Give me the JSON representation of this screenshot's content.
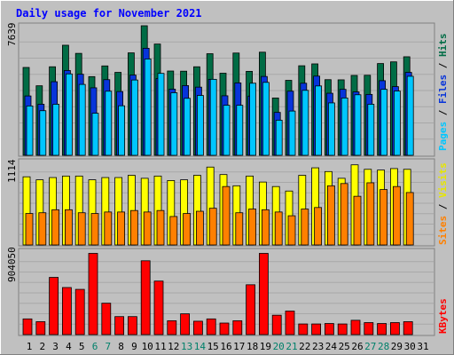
{
  "chart_data": {
    "type": "bar",
    "title": "Daily usage for November 2021",
    "categories": [
      "1",
      "2",
      "3",
      "4",
      "5",
      "6",
      "7",
      "8",
      "9",
      "10",
      "11",
      "12",
      "13",
      "14",
      "15",
      "16",
      "17",
      "18",
      "19",
      "20",
      "21",
      "22",
      "23",
      "24",
      "25",
      "26",
      "27",
      "28",
      "29",
      "30",
      "31"
    ],
    "weekend_days": [
      6,
      7,
      13,
      14,
      20,
      21,
      27,
      28
    ],
    "panels": [
      {
        "name": "top",
        "ymax_label": "7639",
        "ymax": 7639,
        "ylabel": [
          "Pages",
          "Files",
          "Hits"
        ],
        "series": [
          {
            "name": "Hits",
            "color": "#006c45",
            "values": [
              5180,
              4100,
              5220,
              6490,
              6010,
              4640,
              5270,
              4890,
              6040,
              7639,
              6560,
              4970,
              4960,
              5220,
              5990,
              4840,
              6030,
              4950,
              6080,
              3380,
              4420,
              5280,
              5390,
              4460,
              4450,
              4710,
              4720,
              5410,
              5510,
              5810,
              0
            ]
          },
          {
            "name": "Files",
            "color": "#0734da",
            "values": [
              3500,
              3010,
              4340,
              5000,
              4780,
              3980,
              4460,
              3760,
              4730,
              6310,
              4520,
              3900,
              4110,
              4020,
              4480,
              3510,
              4270,
              3490,
              4650,
              2530,
              3780,
              4250,
              4670,
              3660,
              3890,
              3740,
              3590,
              4400,
              4050,
              4890,
              0
            ]
          },
          {
            "name": "Pages",
            "color": "#00c6ff",
            "values": [
              2910,
              2630,
              3010,
              4800,
              4180,
              2480,
              3780,
              2920,
              4440,
              5680,
              4830,
              3690,
              3360,
              3530,
              4480,
              2950,
              2950,
              4250,
              4300,
              2070,
              2610,
              3830,
              4090,
              3090,
              3380,
              3570,
              3010,
              3890,
              3790,
              4660,
              0
            ]
          }
        ]
      },
      {
        "name": "middle",
        "ymax_label": "1114",
        "ymax": 1114,
        "ylabel": [
          "Sites",
          "Visits"
        ],
        "series": [
          {
            "name": "Visits",
            "color": "#ffff00",
            "values": [
              910,
              870,
              900,
              920,
              920,
              870,
              900,
              900,
              930,
              890,
              920,
              860,
              870,
              930,
              1040,
              940,
              790,
              920,
              840,
              780,
              720,
              930,
              1030,
              980,
              890,
              1070,
              1010,
              1000,
              1020,
              1010,
              0
            ]
          },
          {
            "name": "Sites",
            "color": "#ff8000",
            "values": [
              420,
              430,
              470,
              470,
              430,
              420,
              440,
              440,
              460,
              440,
              460,
              380,
              420,
              450,
              490,
              780,
              430,
              480,
              470,
              440,
              390,
              480,
              500,
              790,
              820,
              650,
              830,
              740,
              780,
              700,
              0
            ]
          }
        ]
      },
      {
        "name": "bottom",
        "ymax_label": "904050",
        "ymax": 904050,
        "ylabel": [
          "KBytes"
        ],
        "series": [
          {
            "name": "KBytes",
            "color": "#ff0000",
            "values": [
              170000,
              140000,
              620000,
              510000,
              490000,
              880000,
              340000,
              195000,
              195000,
              800000,
              580000,
              150000,
              225000,
              145000,
              170000,
              125000,
              150000,
              540000,
              880000,
              210000,
              255000,
              115000,
              115000,
              120000,
              115000,
              155000,
              130000,
              120000,
              130000,
              140000,
              0
            ]
          }
        ]
      }
    ]
  },
  "colors": {
    "background": "#c0c0c0",
    "title": "#0000ff",
    "panel_bg": "#c0c0c0",
    "grid": "#9a9a9a",
    "weekend_label": "#00806a",
    "weekday_label": "#000000"
  }
}
